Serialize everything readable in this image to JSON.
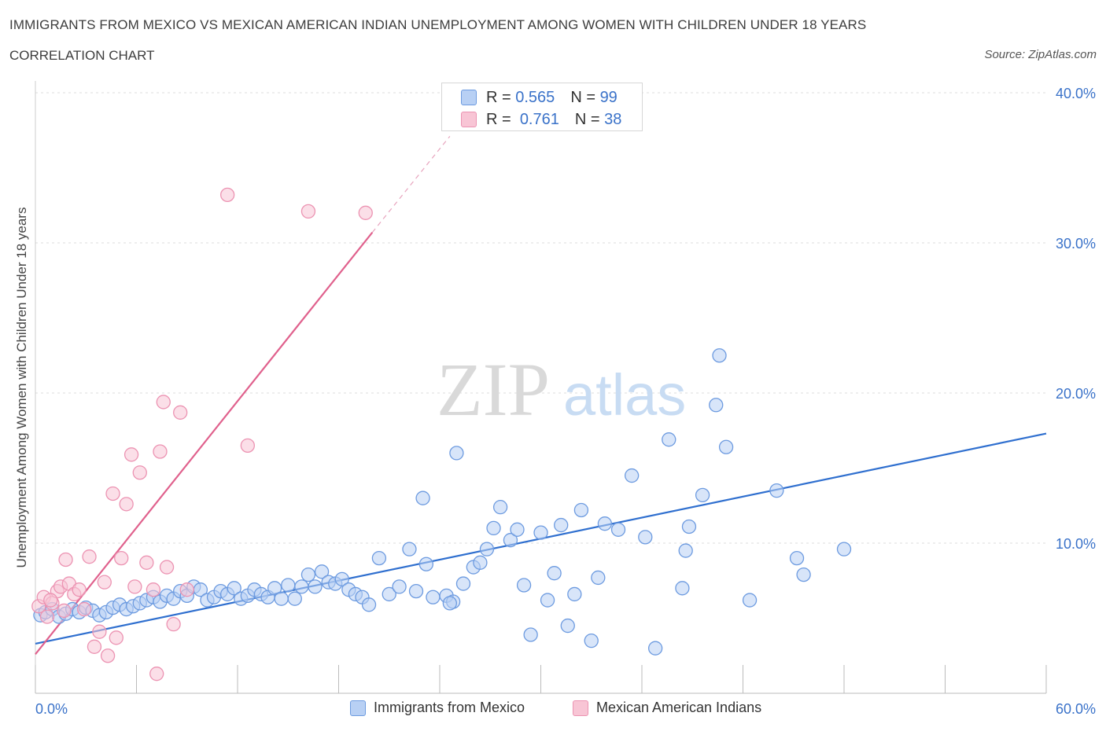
{
  "header": {
    "title": "IMMIGRANTS FROM MEXICO VS MEXICAN AMERICAN INDIAN UNEMPLOYMENT AMONG WOMEN WITH CHILDREN UNDER 18 YEARS",
    "subtitle": "CORRELATION CHART",
    "source": "Source: ZipAtlas.com"
  },
  "watermark": {
    "zip": "ZIP",
    "atlas": "atlas"
  },
  "colors": {
    "blue_fill": "#b8d0f4",
    "blue_stroke": "#6d9be0",
    "blue_line": "#2f6fcf",
    "pink_fill": "#f8c5d5",
    "pink_stroke": "#ec93b2",
    "pink_line": "#e0618d",
    "axis_label": "#3a72c9",
    "grid": "#dddddd"
  },
  "legend": {
    "r_label": "R =",
    "n_label": "N =",
    "series": [
      {
        "name": "Immigrants from Mexico",
        "r": "0.565",
        "n": "99"
      },
      {
        "name": "Mexican American Indians",
        "r": "0.761",
        "n": "38"
      }
    ]
  },
  "chart_data": {
    "type": "scatter",
    "title": "IMMIGRANTS FROM MEXICO VS MEXICAN AMERICAN INDIAN UNEMPLOYMENT AMONG WOMEN WITH CHILDREN UNDER 18 YEARS",
    "xlabel": "",
    "ylabel": "Unemployment Among Women with Children Under 18 years",
    "xlim": [
      0,
      60
    ],
    "ylim": [
      0,
      40
    ],
    "x_tick_labels": [
      "0.0%",
      "60.0%"
    ],
    "y_tick_labels": [
      "10.0%",
      "20.0%",
      "30.0%",
      "40.0%"
    ],
    "y_ticks": [
      10,
      20,
      30,
      40
    ],
    "grid": true,
    "legend_position": "top-center",
    "series": [
      {
        "name": "Immigrants from Mexico",
        "trend": {
          "x": [
            0,
            60
          ],
          "y": [
            3.3,
            17.3
          ]
        },
        "points": [
          [
            0.3,
            5.2
          ],
          [
            0.6,
            5.4
          ],
          [
            1.0,
            5.6
          ],
          [
            1.4,
            5.1
          ],
          [
            1.8,
            5.3
          ],
          [
            2.2,
            5.6
          ],
          [
            2.6,
            5.4
          ],
          [
            3.0,
            5.7
          ],
          [
            3.4,
            5.5
          ],
          [
            3.8,
            5.2
          ],
          [
            4.2,
            5.4
          ],
          [
            4.6,
            5.7
          ],
          [
            5.0,
            5.9
          ],
          [
            5.4,
            5.6
          ],
          [
            5.8,
            5.8
          ],
          [
            6.2,
            6.0
          ],
          [
            6.6,
            6.2
          ],
          [
            7.0,
            6.4
          ],
          [
            7.4,
            6.1
          ],
          [
            7.8,
            6.5
          ],
          [
            8.2,
            6.3
          ],
          [
            8.6,
            6.8
          ],
          [
            9.0,
            6.5
          ],
          [
            9.4,
            7.1
          ],
          [
            9.8,
            6.9
          ],
          [
            10.2,
            6.2
          ],
          [
            10.6,
            6.4
          ],
          [
            11.0,
            6.8
          ],
          [
            11.4,
            6.6
          ],
          [
            11.8,
            7.0
          ],
          [
            12.2,
            6.3
          ],
          [
            12.6,
            6.5
          ],
          [
            13.0,
            6.9
          ],
          [
            13.4,
            6.6
          ],
          [
            13.8,
            6.4
          ],
          [
            14.2,
            7.0
          ],
          [
            14.6,
            6.3
          ],
          [
            15.0,
            7.2
          ],
          [
            15.4,
            6.3
          ],
          [
            15.8,
            7.1
          ],
          [
            16.2,
            7.9
          ],
          [
            16.6,
            7.1
          ],
          [
            17.0,
            8.1
          ],
          [
            17.4,
            7.4
          ],
          [
            17.8,
            7.3
          ],
          [
            18.2,
            7.6
          ],
          [
            18.6,
            6.9
          ],
          [
            19.0,
            6.6
          ],
          [
            19.4,
            6.4
          ],
          [
            19.8,
            5.9
          ],
          [
            20.4,
            9.0
          ],
          [
            21.0,
            6.6
          ],
          [
            21.6,
            7.1
          ],
          [
            22.2,
            9.6
          ],
          [
            22.6,
            6.8
          ],
          [
            23.2,
            8.6
          ],
          [
            23.6,
            6.4
          ],
          [
            24.4,
            6.5
          ],
          [
            24.8,
            6.1
          ],
          [
            25.4,
            7.3
          ],
          [
            26.0,
            8.4
          ],
          [
            26.4,
            8.7
          ],
          [
            26.8,
            9.6
          ],
          [
            27.2,
            11.0
          ],
          [
            27.6,
            12.4
          ],
          [
            28.2,
            10.2
          ],
          [
            28.6,
            10.9
          ],
          [
            29.0,
            7.2
          ],
          [
            29.4,
            3.9
          ],
          [
            30.0,
            10.7
          ],
          [
            30.4,
            6.2
          ],
          [
            30.8,
            8.0
          ],
          [
            31.2,
            11.2
          ],
          [
            31.6,
            4.5
          ],
          [
            32.0,
            6.6
          ],
          [
            32.4,
            12.2
          ],
          [
            33.0,
            3.5
          ],
          [
            33.4,
            7.7
          ],
          [
            33.8,
            11.3
          ],
          [
            34.6,
            10.9
          ],
          [
            35.4,
            14.5
          ],
          [
            36.2,
            10.4
          ],
          [
            36.8,
            3.0
          ],
          [
            37.6,
            16.9
          ],
          [
            38.4,
            7.0
          ],
          [
            38.6,
            9.5
          ],
          [
            38.8,
            11.1
          ],
          [
            39.6,
            13.2
          ],
          [
            40.4,
            19.2
          ],
          [
            40.6,
            22.5
          ],
          [
            41.0,
            16.4
          ],
          [
            42.4,
            6.2
          ],
          [
            44.0,
            13.5
          ],
          [
            45.2,
            9.0
          ],
          [
            45.6,
            7.9
          ],
          [
            48.0,
            9.6
          ],
          [
            24.6,
            6.0
          ],
          [
            25.0,
            16.0
          ],
          [
            23.0,
            13.0
          ]
        ]
      },
      {
        "name": "Mexican American Indians",
        "trend": {
          "x": [
            0,
            20
          ],
          "y": [
            2.6,
            30.7
          ]
        },
        "trend_extension": {
          "x": [
            20,
            24.6
          ],
          "y": [
            30.7,
            37.1
          ]
        },
        "points": [
          [
            0.2,
            5.8
          ],
          [
            0.5,
            6.4
          ],
          [
            0.7,
            5.1
          ],
          [
            1.0,
            6.0
          ],
          [
            1.3,
            6.8
          ],
          [
            1.5,
            7.1
          ],
          [
            1.7,
            5.5
          ],
          [
            2.0,
            7.3
          ],
          [
            2.3,
            6.6
          ],
          [
            2.6,
            6.9
          ],
          [
            2.9,
            5.6
          ],
          [
            3.2,
            9.1
          ],
          [
            3.5,
            3.1
          ],
          [
            3.8,
            4.1
          ],
          [
            4.1,
            7.4
          ],
          [
            4.3,
            2.5
          ],
          [
            4.6,
            13.3
          ],
          [
            4.8,
            3.7
          ],
          [
            5.1,
            9.0
          ],
          [
            5.4,
            12.6
          ],
          [
            5.7,
            15.9
          ],
          [
            5.9,
            7.1
          ],
          [
            6.2,
            14.7
          ],
          [
            6.6,
            8.7
          ],
          [
            7.0,
            6.9
          ],
          [
            7.2,
            1.3
          ],
          [
            7.4,
            16.1
          ],
          [
            7.6,
            19.4
          ],
          [
            7.8,
            8.4
          ],
          [
            8.2,
            4.6
          ],
          [
            8.6,
            18.7
          ],
          [
            9.0,
            6.9
          ],
          [
            11.4,
            33.2
          ],
          [
            12.6,
            16.5
          ],
          [
            16.2,
            32.1
          ],
          [
            19.6,
            32.0
          ],
          [
            1.8,
            8.9
          ],
          [
            0.9,
            6.2
          ]
        ]
      }
    ]
  }
}
